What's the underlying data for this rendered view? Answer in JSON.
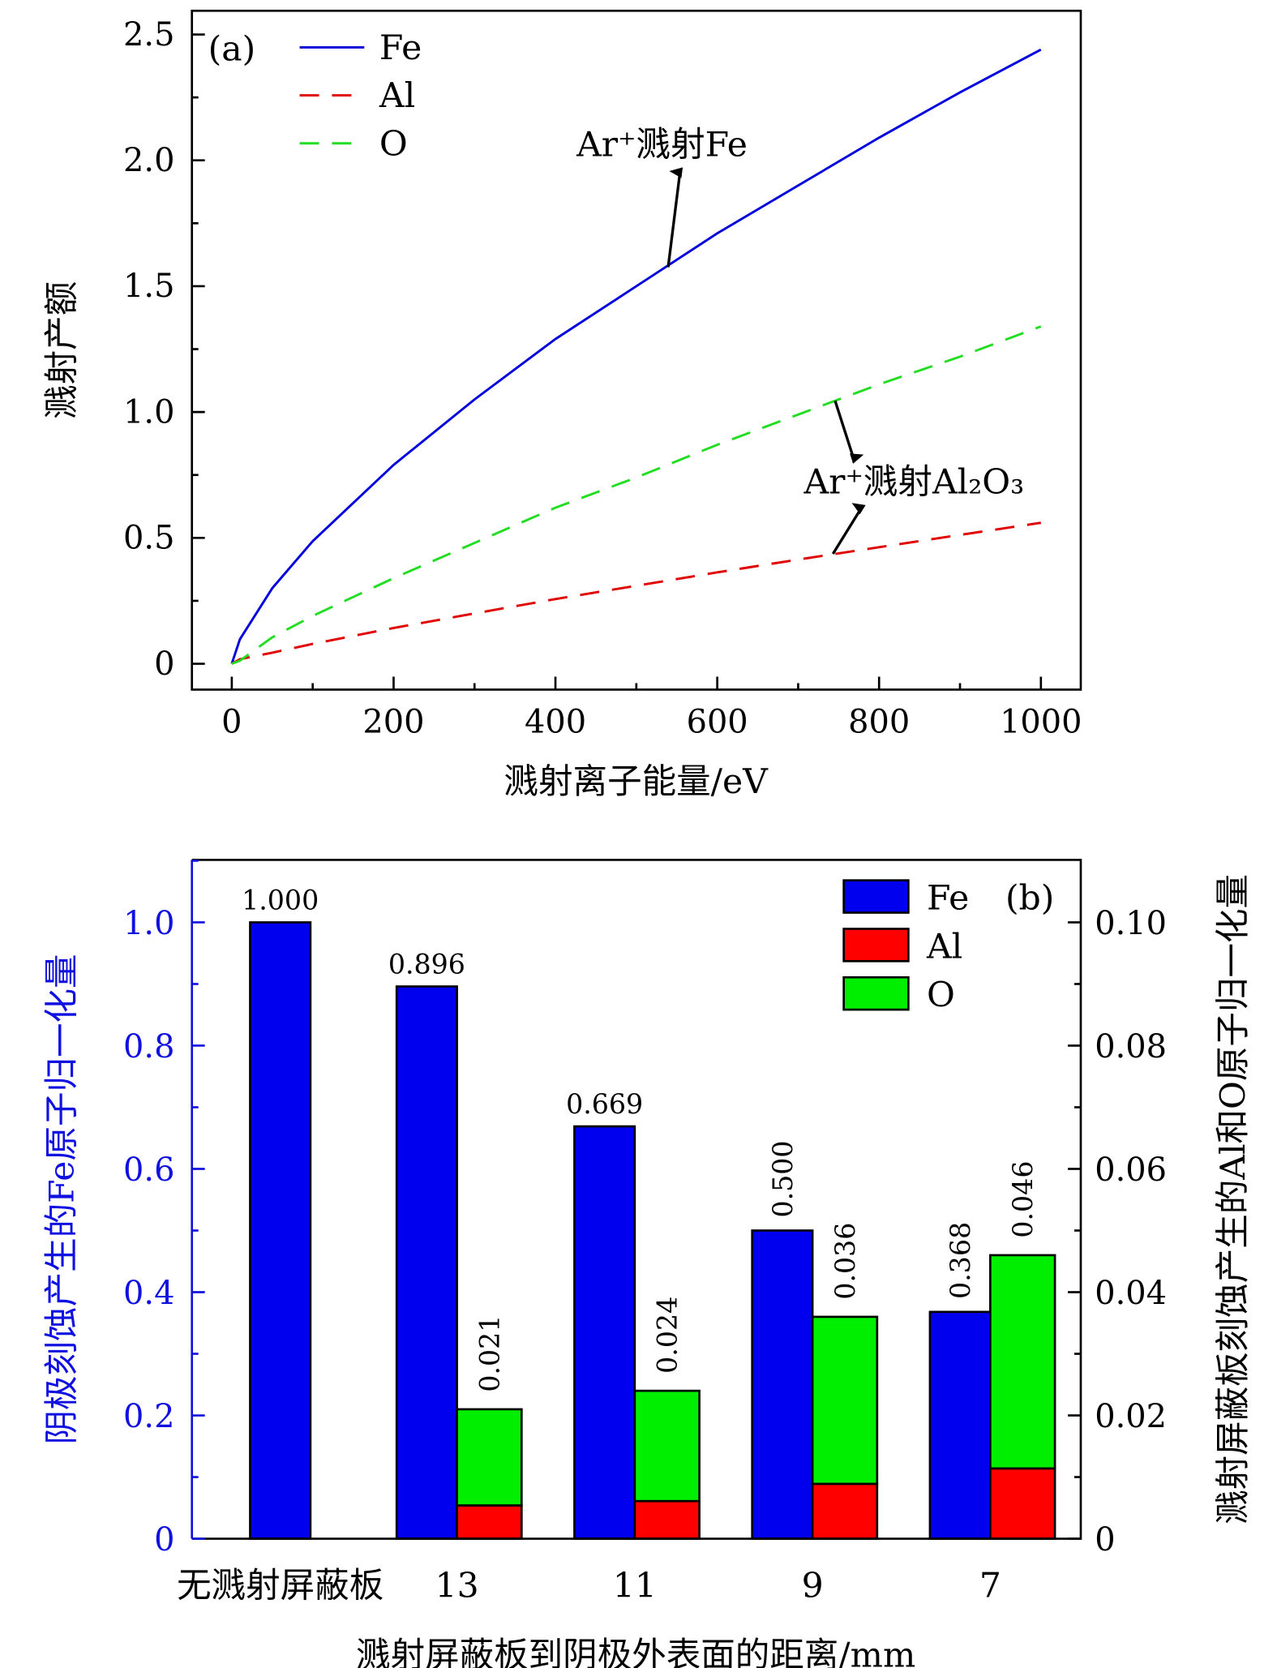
{
  "chart_data": [
    {
      "type": "line",
      "panel_label": "(a)",
      "xlabel": "溅射离子能量/eV",
      "ylabel": "溅射产额",
      "xlim": [
        -50,
        1050
      ],
      "ylim": [
        -0.1,
        2.6
      ],
      "xticks": [
        "0",
        "200",
        "400",
        "600",
        "800",
        "1000"
      ],
      "yticks": [
        "0",
        "0.5",
        "1.0",
        "1.5",
        "2.0",
        "2.5"
      ],
      "legend_position": "top-left",
      "grid": false,
      "x": [
        0,
        10,
        50,
        100,
        200,
        300,
        400,
        500,
        600,
        700,
        800,
        900,
        1000
      ],
      "series": [
        {
          "name": "Fe",
          "color": "#0000dd",
          "style": "solid",
          "values": [
            0,
            0.097,
            0.3,
            0.487,
            0.79,
            1.05,
            1.29,
            1.5,
            1.71,
            1.9,
            2.09,
            2.27,
            2.44
          ]
        },
        {
          "name": "Al",
          "color": "#e00000",
          "style": "dashed",
          "values": [
            0,
            0.018,
            0.044,
            0.079,
            0.142,
            0.2,
            0.257,
            0.31,
            0.363,
            0.414,
            0.463,
            0.512,
            0.56
          ]
        },
        {
          "name": "O",
          "color": "#22dd22",
          "style": "dashed",
          "values": [
            0,
            0.012,
            0.105,
            0.19,
            0.34,
            0.48,
            0.62,
            0.74,
            0.87,
            0.99,
            1.11,
            1.22,
            1.34
          ]
        }
      ],
      "annotations": [
        {
          "text": "Ar⁺溅射Fe"
        },
        {
          "text": "Ar⁺溅射Al₂O₃"
        }
      ]
    },
    {
      "type": "bar",
      "panel_label": "(b)",
      "xlabel": "溅射屏蔽板到阴极外表面的距离/mm",
      "ylabel_left": "阴极刻蚀产生的Fe原子归一化量",
      "ylabel_right": "溅射屏蔽板刻蚀产生的Al和O原子归一化量",
      "ylim_left": [
        0,
        1.1
      ],
      "ylim_right": [
        0,
        0.11
      ],
      "yticks_left": [
        "0",
        "0.2",
        "0.4",
        "0.6",
        "0.8",
        "1.0"
      ],
      "yticks_right": [
        "0",
        "0.02",
        "0.04",
        "0.06",
        "0.08",
        "0.10"
      ],
      "left_axis_color": "#1010e0",
      "legend_position": "top-right",
      "categories": [
        "无溅射屏蔽板",
        "13",
        "11",
        "9",
        "7"
      ],
      "series": [
        {
          "name": "Fe",
          "color": "#0000ee",
          "axis": "left",
          "values": [
            1.0,
            0.896,
            0.669,
            0.5,
            0.368
          ],
          "labels": [
            "1.000",
            "0.896",
            "0.669",
            "0.500",
            "0.368"
          ]
        },
        {
          "name": "Al",
          "color": "#ff0000",
          "axis": "right",
          "stacked": true,
          "values": [
            null,
            0.0054,
            0.0061,
            0.0089,
            0.0114
          ]
        },
        {
          "name": "O",
          "color": "#00ee00",
          "axis": "right",
          "stacked": true,
          "values": [
            null,
            0.0156,
            0.0179,
            0.0271,
            0.0346
          ]
        }
      ],
      "stack_totals": [
        null,
        "0.021",
        "0.024",
        "0.036",
        "0.046"
      ]
    }
  ]
}
